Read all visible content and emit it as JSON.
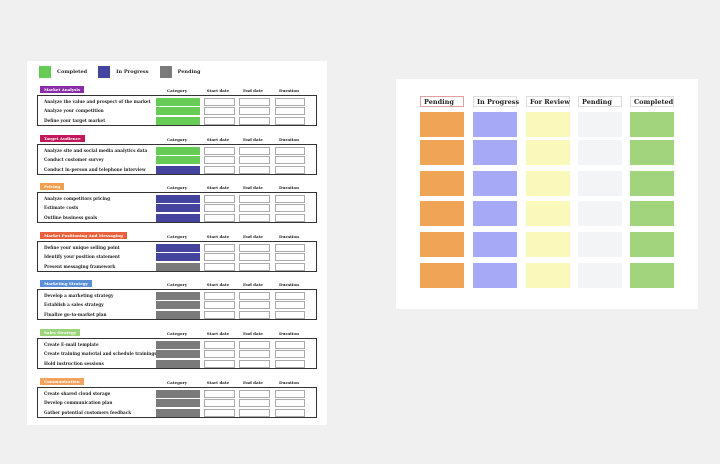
{
  "colors": {
    "completed": "#66cc55",
    "in_progress": "#44449e",
    "pending": "#7a7a7a",
    "note_orange": "#f0a455",
    "note_blue": "#a6a9f5",
    "note_yellow": "#fbf8bb",
    "note_gray": "#f3f4f6",
    "note_green": "#a1d47c"
  },
  "legend": [
    {
      "label": "Completed",
      "color": "#66cc55"
    },
    {
      "label": "In Progress",
      "color": "#44449e"
    },
    {
      "label": "Pending",
      "color": "#7a7a7a"
    }
  ],
  "columns": {
    "category": "Category",
    "start": "Start date",
    "end": "End date",
    "duration": "Duration"
  },
  "sections": [
    {
      "title": "Market Analysis",
      "color": "#8a2ca8",
      "tasks": [
        {
          "name": "Analyze the value and prospect of the market",
          "status": "completed"
        },
        {
          "name": "Analyze your competition",
          "status": "completed"
        },
        {
          "name": "Define your target market",
          "status": "completed"
        }
      ]
    },
    {
      "title": "Target Audience",
      "color": "#c2185b",
      "tasks": [
        {
          "name": "Analyze site and social media analytics data",
          "status": "completed"
        },
        {
          "name": "Conduct customer survey",
          "status": "completed"
        },
        {
          "name": "Conduct in-person and telephone interview",
          "status": "in_progress"
        }
      ]
    },
    {
      "title": "Pricing",
      "color": "#f0a050",
      "tasks": [
        {
          "name": "Analyze competitors pricing",
          "status": "in_progress"
        },
        {
          "name": "Estimate costs",
          "status": "in_progress"
        },
        {
          "name": "Outline business goals",
          "status": "in_progress"
        }
      ]
    },
    {
      "title": "Market Positioning And Messaging",
      "color": "#e8613c",
      "tasks": [
        {
          "name": "Define your unique selling point",
          "status": "in_progress"
        },
        {
          "name": "Identify your position statement",
          "status": "in_progress"
        },
        {
          "name": "Present messaging framework",
          "status": "pending"
        }
      ]
    },
    {
      "title": "Marketing Strategy",
      "color": "#5b8fd6",
      "tasks": [
        {
          "name": "Develop a marketing strategy",
          "status": "pending"
        },
        {
          "name": "Establish a sales strategy",
          "status": "pending"
        },
        {
          "name": "Finalize go-to-market plan",
          "status": "pending"
        }
      ]
    },
    {
      "title": "Sales Strategy",
      "color": "#9bd37a",
      "tasks": [
        {
          "name": "Create E-mail template",
          "status": "pending"
        },
        {
          "name": "Create training material and schedule trainings",
          "status": "pending"
        },
        {
          "name": "Hold instruction sessions",
          "status": "pending"
        }
      ]
    },
    {
      "title": "Communication",
      "color": "#f3a35e",
      "tasks": [
        {
          "name": "Create shared cloud storage",
          "status": "pending"
        },
        {
          "name": "Develop communication plan",
          "status": "pending"
        },
        {
          "name": "Gather potential customers feedback",
          "status": "pending"
        }
      ]
    }
  ],
  "board": {
    "columns": [
      {
        "title": "Pending",
        "note_color": "#f0a455",
        "bordered": true
      },
      {
        "title": "In Progress",
        "note_color": "#a6a9f5",
        "bordered": false
      },
      {
        "title": "For Review",
        "note_color": "#fbf8bb",
        "bordered": false
      },
      {
        "title": "Pending",
        "note_color": "#f3f4f6",
        "bordered": false
      },
      {
        "title": "Completed",
        "note_color": "#a1d47c",
        "bordered": false
      }
    ],
    "notes_per_column": 6
  }
}
